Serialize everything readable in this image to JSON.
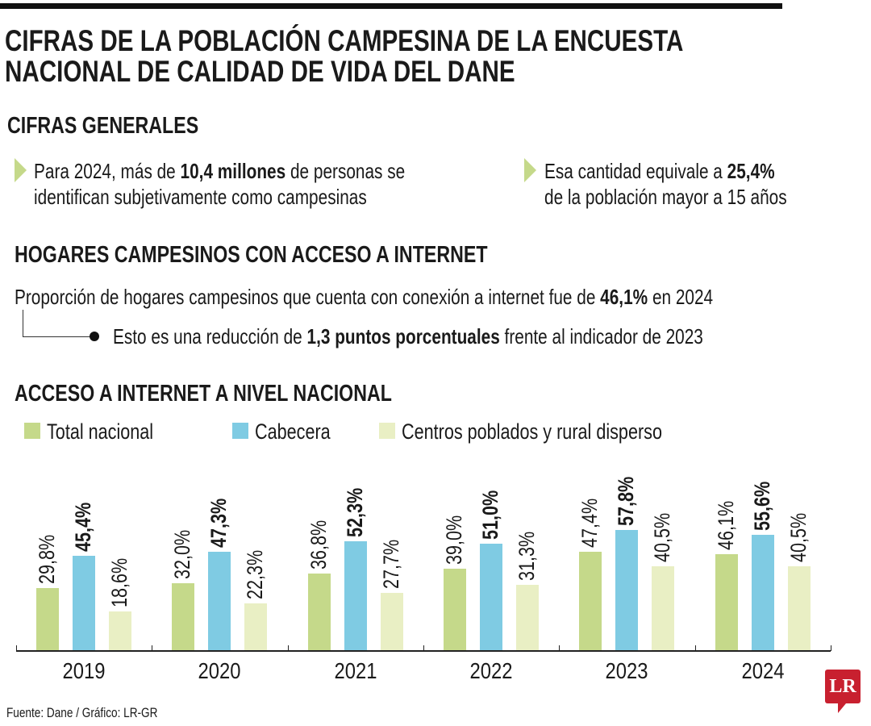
{
  "title": {
    "line1": "CIFRAS DE LA POBLACIÓN CAMPESINA DE LA ENCUESTA",
    "line2": "NACIONAL DE CALIDAD DE VIDA DEL DANE"
  },
  "general": {
    "heading": "CIFRAS GENERALES",
    "fact1": {
      "pre": "Para 2024, más de ",
      "bold": "10,4 millones",
      "post": " de personas se",
      "line2": "identifican subjetivamente como campesinas"
    },
    "fact2": {
      "pre": "Esa cantidad equivale a ",
      "bold": "25,4%",
      "line2": "de la población mayor a 15 años"
    }
  },
  "internet_hogares": {
    "heading": "HOGARES CAMPESINOS CON ACCESO A INTERNET",
    "line1": {
      "pre": "Proporción de hogares campesinos que cuenta con conexión a internet fue de ",
      "bold": "46,1%",
      "post": " en 2024"
    },
    "line2": {
      "pre": "Esto es una reducción de ",
      "bold": "1,3 puntos porcentuales",
      "post": " frente al indicador de 2023"
    }
  },
  "chart_data": {
    "type": "bar",
    "title": "ACCESO A INTERNET A NIVEL NACIONAL",
    "categories": [
      "2019",
      "2020",
      "2021",
      "2022",
      "2023",
      "2024"
    ],
    "series": [
      {
        "name": "Total nacional",
        "color": "#c5d98a",
        "values": [
          29.8,
          32.0,
          36.8,
          39.0,
          47.4,
          46.1
        ],
        "labels": [
          "29,8%",
          "32,0%",
          "36,8%",
          "39,0%",
          "47,4%",
          "46,1%"
        ]
      },
      {
        "name": "Cabecera",
        "color": "#7fcbe3",
        "values": [
          45.4,
          47.3,
          52.3,
          51.0,
          57.8,
          55.6
        ],
        "labels": [
          "45,4%",
          "47,3%",
          "52,3%",
          "51,0%",
          "57,8%",
          "55,6%"
        ],
        "bold": true
      },
      {
        "name": "Centros poblados y rural disperso",
        "color": "#e9efc4",
        "values": [
          18.6,
          22.3,
          27.7,
          31.3,
          40.5,
          40.5
        ],
        "labels": [
          "18,6%",
          "22,3%",
          "27,7%",
          "31,3%",
          "40,5%",
          "40,5%"
        ]
      }
    ],
    "ylim": [
      0,
      60
    ],
    "grid": false,
    "legend": "top-left"
  },
  "footer": {
    "source": "Fuente: Dane / Gráfico: LR-GR",
    "logo": "LR",
    "logo_color": "#c8202f"
  }
}
